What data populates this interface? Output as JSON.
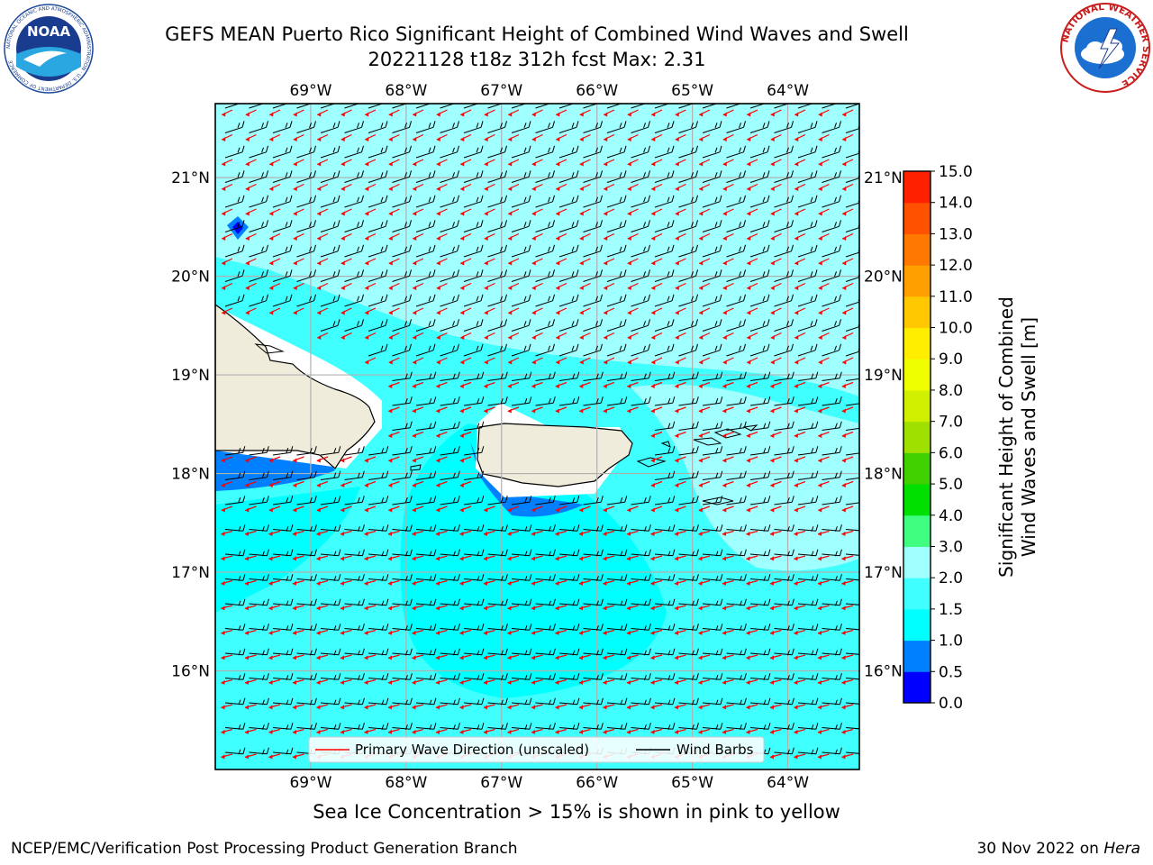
{
  "title": {
    "line1": "GEFS MEAN Puerto Rico Significant Height of Combined Wind Waves and Swell",
    "line2": "20221128 t18z 312h fcst   Max: 2.31"
  },
  "logos": {
    "left": "noaa-logo",
    "left_text": "NOAA",
    "left_ring_text": "NATIONAL OCEANIC AND ATMOSPHERIC ADMINISTRATION · U.S. DEPARTMENT OF COMMERCE",
    "right": "nws-logo",
    "right_ring_text": "NATIONAL WEATHER SERVICE"
  },
  "map": {
    "lon_labels": [
      "69°W",
      "68°W",
      "67°W",
      "66°W",
      "65°W",
      "64°W"
    ],
    "lat_labels": [
      "21°N",
      "20°N",
      "19°N",
      "18°N",
      "17°N",
      "16°N"
    ],
    "lon_values": [
      -69,
      -68,
      -67,
      -66,
      -65,
      -64
    ],
    "lat_values": [
      21,
      20,
      19,
      18,
      17,
      16
    ],
    "extent": {
      "lon_min": -70.0,
      "lon_max": -63.25,
      "lat_min": 15.0,
      "lat_max": 21.75
    },
    "legend": {
      "primary_wave": "Primary Wave Direction (unscaled)",
      "wind_barbs": "Wind Barbs"
    },
    "colors": {
      "land": "#efecdc",
      "wave_arrow": "#ff0000",
      "wind_barb": "#000000",
      "grid": "#b0b0b0"
    }
  },
  "colorbar": {
    "label_line1": "Significant Height of Combined",
    "label_line2": "Wind Waves and Swell [m]",
    "ticks": [
      "0.0",
      "0.5",
      "1.0",
      "1.5",
      "2.0",
      "3.0",
      "4.0",
      "5.0",
      "6.0",
      "7.0",
      "8.0",
      "9.0",
      "10.0",
      "11.0",
      "12.0",
      "13.0",
      "14.0",
      "15.0"
    ],
    "colors": [
      "#0000ff",
      "#0080ff",
      "#00ffff",
      "#40ffff",
      "#a0ffff",
      "#40ff80",
      "#00e000",
      "#40d000",
      "#a0e000",
      "#d0f000",
      "#f0ff00",
      "#ffee00",
      "#ffc800",
      "#ffa000",
      "#ff7800",
      "#ff5000",
      "#ff2000"
    ]
  },
  "chart_data": {
    "type": "heatmap",
    "title": "GEFS MEAN Puerto Rico Significant Height of Combined Wind Waves and Swell",
    "colorbar_label": "Significant Height of Combined Wind Waves and Swell [m]",
    "levels_m": [
      0.0,
      0.5,
      1.0,
      1.5,
      2.0,
      3.0,
      4.0,
      5.0,
      6.0,
      7.0,
      8.0,
      9.0,
      10.0,
      11.0,
      12.0,
      13.0,
      14.0,
      15.0
    ],
    "max_value_m": 2.31,
    "lon_range": [
      -70.0,
      -63.25
    ],
    "lat_range": [
      15.0,
      21.75
    ],
    "regions": [
      {
        "area": "north of 19.5°N",
        "band": "2.0-3.0"
      },
      {
        "area": "19°N-19.7°N band",
        "band": "1.5-2.0"
      },
      {
        "area": "south of 17.5°N",
        "band": "1.5-2.0"
      },
      {
        "area": "lee of Puerto Rico south coast",
        "band": "0.5-1.0"
      },
      {
        "area": "south of Hispaniola near 18°N",
        "band": "0.5-1.0"
      }
    ]
  },
  "sea_ice_note": "Sea Ice Concentration > 15% is shown in pink to yellow",
  "footer": {
    "left": "NCEP/EMC/Verification Post Processing Product Generation Branch",
    "right_date": "30 Nov 2022 on",
    "right_host": "Hera"
  }
}
